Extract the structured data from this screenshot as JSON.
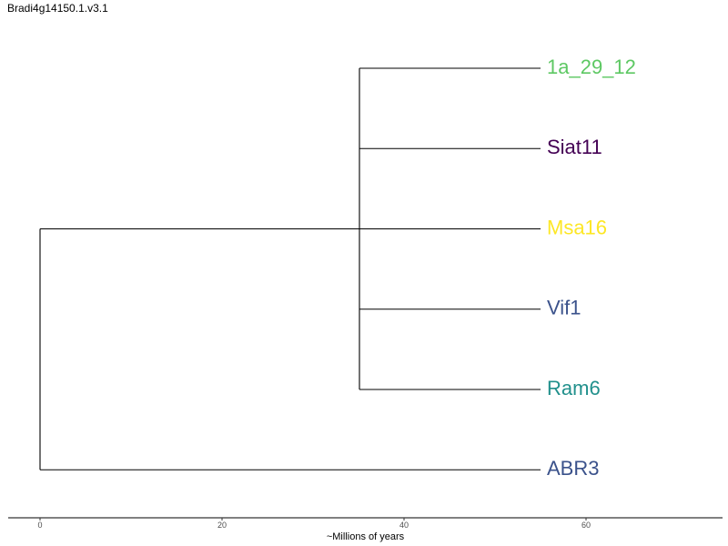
{
  "chart_data": {
    "type": "dendrogram",
    "title": "Bradi4g14150.1.v3.1",
    "xlabel": "~Millions of years",
    "xlim": [
      -3.5,
      75
    ],
    "xticks": [
      0,
      20,
      40,
      60
    ],
    "grid": false,
    "root": {
      "name": "",
      "x": 0,
      "children": [
        {
          "name": "",
          "x": 35.1,
          "children": [
            {
              "name": "1a_29_12",
              "x": 55,
              "color": "#5dc863"
            },
            {
              "name": "Siat11",
              "x": 55,
              "color": "#440154"
            },
            {
              "name": "Msa16",
              "x": 55,
              "color": "#fde725"
            },
            {
              "name": "Vif1",
              "x": 55,
              "color": "#3b528b"
            },
            {
              "name": "Ram6",
              "x": 55,
              "color": "#21908c"
            }
          ]
        },
        {
          "name": "ABR3",
          "x": 55,
          "color": "#3b528b"
        }
      ]
    }
  }
}
